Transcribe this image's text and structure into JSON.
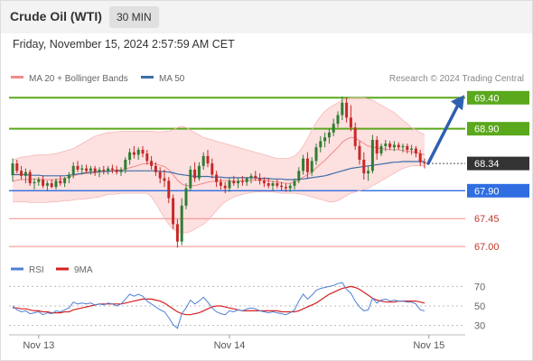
{
  "header": {
    "title": "Crude Oil (WTI)",
    "interval": "30 MIN",
    "datetime": "Friday, November 15, 2024 2:57:59 AM CET"
  },
  "legend": {
    "ma20": "MA 20 + Bollinger Bands",
    "ma50": "MA 50",
    "source": "Research © 2024 Trading Central",
    "rsi": "RSI",
    "rsi_ma": "9MA"
  },
  "colors": {
    "up": "#2e7d32",
    "down": "#c62828",
    "resistance": "#5aa81c",
    "pivot": "#2f6de1",
    "support": "#f08b8b",
    "ma20": "#f28a8a",
    "ma50": "#3e6ea8",
    "band": "#fde0e0",
    "rsi": "#4f7fd6",
    "rsi_ma": "#d62020",
    "last": "#333333",
    "arrow": "#2f5fb0"
  },
  "chart_data": [
    {
      "type": "candlestick",
      "ylim": [
        66.9,
        69.55
      ],
      "x_ticks": [
        {
          "label": "Nov 13",
          "index": 6
        },
        {
          "label": "Nov 14",
          "index": 50
        },
        {
          "label": "Nov 15",
          "index": 96
        }
      ],
      "levels": [
        {
          "value": 69.4,
          "label": "69.40",
          "kind": "resistance"
        },
        {
          "value": 68.9,
          "label": "68.90",
          "kind": "resistance"
        },
        {
          "value": 68.34,
          "label": "68.34",
          "kind": "last"
        },
        {
          "value": 67.9,
          "label": "67.90",
          "kind": "pivot"
        },
        {
          "value": 67.45,
          "label": "67.45",
          "kind": "support"
        },
        {
          "value": 67.0,
          "label": "67.00",
          "kind": "support"
        }
      ],
      "last_price": 68.34,
      "projection": {
        "from": 68.34,
        "to": 69.4
      },
      "series": [
        {
          "name": "MA 20",
          "indicator": "ma20"
        },
        {
          "name": "MA 50",
          "indicator": "ma50"
        },
        {
          "name": "Bollinger Bands",
          "indicator": "bollinger"
        }
      ],
      "ohlc": [
        [
          68.15,
          68.42,
          68.05,
          68.34
        ],
        [
          68.34,
          68.4,
          68.18,
          68.22
        ],
        [
          68.22,
          68.3,
          68.08,
          68.14
        ],
        [
          68.14,
          68.26,
          68.02,
          68.2
        ],
        [
          68.2,
          68.24,
          67.98,
          68.02
        ],
        [
          68.02,
          68.1,
          67.92,
          68.04
        ],
        [
          68.04,
          68.12,
          67.98,
          68.08
        ],
        [
          68.08,
          68.14,
          67.94,
          67.98
        ],
        [
          67.98,
          68.06,
          67.9,
          68.02
        ],
        [
          68.02,
          68.08,
          67.94,
          67.96
        ],
        [
          67.96,
          68.1,
          67.92,
          68.06
        ],
        [
          68.06,
          68.14,
          67.98,
          68.02
        ],
        [
          68.02,
          68.12,
          67.96,
          68.1
        ],
        [
          68.1,
          68.2,
          68.02,
          68.16
        ],
        [
          68.16,
          68.36,
          68.1,
          68.3
        ],
        [
          68.3,
          68.38,
          68.2,
          68.24
        ],
        [
          68.24,
          68.32,
          68.16,
          68.26
        ],
        [
          68.26,
          68.32,
          68.18,
          68.22
        ],
        [
          68.22,
          68.3,
          68.16,
          68.26
        ],
        [
          68.26,
          68.3,
          68.14,
          68.2
        ],
        [
          68.2,
          68.28,
          68.12,
          68.24
        ],
        [
          68.24,
          68.3,
          68.16,
          68.22
        ],
        [
          68.22,
          68.3,
          68.16,
          68.26
        ],
        [
          68.26,
          68.32,
          68.18,
          68.24
        ],
        [
          68.24,
          68.3,
          68.16,
          68.2
        ],
        [
          68.2,
          68.28,
          68.14,
          68.24
        ],
        [
          68.24,
          68.44,
          68.18,
          68.4
        ],
        [
          68.4,
          68.58,
          68.32,
          68.52
        ],
        [
          68.52,
          68.62,
          68.42,
          68.48
        ],
        [
          68.48,
          68.6,
          68.4,
          68.56
        ],
        [
          68.56,
          68.62,
          68.44,
          68.5
        ],
        [
          68.5,
          68.56,
          68.32,
          68.38
        ],
        [
          68.38,
          68.46,
          68.24,
          68.3
        ],
        [
          68.3,
          68.36,
          68.14,
          68.2
        ],
        [
          68.2,
          68.28,
          68.02,
          68.1
        ],
        [
          68.1,
          68.24,
          67.96,
          68.06
        ],
        [
          68.06,
          68.12,
          67.7,
          67.78
        ],
        [
          67.78,
          67.84,
          67.28,
          67.36
        ],
        [
          67.36,
          67.44,
          66.98,
          67.08
        ],
        [
          67.08,
          67.78,
          67.02,
          67.66
        ],
        [
          67.66,
          68.02,
          67.6,
          67.94
        ],
        [
          67.94,
          68.3,
          67.9,
          68.24
        ],
        [
          68.24,
          68.36,
          68.04,
          68.1
        ],
        [
          68.1,
          68.36,
          68.06,
          68.3
        ],
        [
          68.3,
          68.52,
          68.24,
          68.46
        ],
        [
          68.46,
          68.56,
          68.28,
          68.34
        ],
        [
          68.34,
          68.42,
          68.1,
          68.16
        ],
        [
          68.16,
          68.22,
          67.96,
          68.04
        ],
        [
          68.04,
          68.1,
          67.92,
          67.98
        ],
        [
          67.98,
          68.04,
          67.86,
          67.94
        ],
        [
          67.94,
          68.1,
          67.88,
          68.06
        ],
        [
          68.06,
          68.14,
          67.98,
          68.02
        ],
        [
          68.02,
          68.1,
          67.94,
          68.06
        ],
        [
          68.06,
          68.14,
          67.98,
          68.04
        ],
        [
          68.04,
          68.12,
          67.98,
          68.1
        ],
        [
          68.1,
          68.18,
          68.02,
          68.14
        ],
        [
          68.14,
          68.22,
          68.06,
          68.1
        ],
        [
          68.1,
          68.18,
          68.0,
          68.06
        ],
        [
          68.06,
          68.12,
          67.96,
          68.02
        ],
        [
          68.02,
          68.1,
          67.94,
          67.98
        ],
        [
          67.98,
          68.06,
          67.9,
          68.02
        ],
        [
          68.02,
          68.08,
          67.94,
          67.98
        ],
        [
          67.98,
          68.04,
          67.9,
          67.96
        ],
        [
          67.96,
          68.02,
          67.88,
          67.94
        ],
        [
          67.94,
          68.02,
          67.88,
          67.98
        ],
        [
          67.98,
          68.1,
          67.92,
          68.06
        ],
        [
          68.06,
          68.28,
          68.02,
          68.22
        ],
        [
          68.22,
          68.48,
          68.16,
          68.42
        ],
        [
          68.42,
          68.52,
          68.1,
          68.2
        ],
        [
          68.2,
          68.44,
          68.14,
          68.38
        ],
        [
          68.38,
          68.66,
          68.32,
          68.6
        ],
        [
          68.6,
          68.78,
          68.52,
          68.7
        ],
        [
          68.7,
          68.84,
          68.6,
          68.76
        ],
        [
          68.76,
          68.9,
          68.66,
          68.84
        ],
        [
          68.84,
          69.06,
          68.78,
          68.98
        ],
        [
          68.98,
          69.18,
          68.92,
          69.12
        ],
        [
          69.12,
          69.42,
          69.04,
          69.32
        ],
        [
          69.32,
          69.4,
          69.0,
          69.08
        ],
        [
          69.08,
          69.28,
          68.86,
          68.92
        ],
        [
          68.92,
          69.0,
          68.56,
          68.62
        ],
        [
          68.62,
          68.7,
          68.32,
          68.4
        ],
        [
          68.4,
          68.52,
          68.08,
          68.18
        ],
        [
          68.18,
          68.3,
          68.06,
          68.22
        ],
        [
          68.22,
          68.8,
          68.18,
          68.72
        ],
        [
          68.72,
          68.78,
          68.4,
          68.5
        ],
        [
          68.5,
          68.66,
          68.46,
          68.62
        ],
        [
          68.62,
          68.72,
          68.54,
          68.66
        ],
        [
          68.66,
          68.7,
          68.56,
          68.6
        ],
        [
          68.6,
          68.7,
          68.54,
          68.64
        ],
        [
          68.64,
          68.68,
          68.56,
          68.6
        ],
        [
          68.6,
          68.66,
          68.52,
          68.62
        ],
        [
          68.62,
          68.66,
          68.5,
          68.56
        ],
        [
          68.56,
          68.64,
          68.48,
          68.58
        ],
        [
          68.58,
          68.62,
          68.44,
          68.5
        ],
        [
          68.5,
          68.56,
          68.3,
          68.36
        ],
        [
          68.36,
          68.42,
          68.26,
          68.34
        ]
      ],
      "ma20": [
        68.05,
        68.07,
        68.08,
        68.08,
        68.08,
        68.09,
        68.09,
        68.08,
        68.08,
        68.08,
        68.08,
        68.09,
        68.1,
        68.12,
        68.14,
        68.16,
        68.17,
        68.18,
        68.18,
        68.19,
        68.2,
        68.21,
        68.22,
        68.23,
        68.23,
        68.24,
        68.25,
        68.27,
        68.29,
        68.31,
        68.33,
        68.34,
        68.34,
        68.33,
        68.31,
        68.29,
        68.24,
        68.16,
        68.07,
        68.01,
        67.98,
        67.98,
        67.98,
        68.0,
        68.02,
        68.04,
        68.05,
        68.05,
        68.06,
        68.06,
        68.06,
        68.05,
        68.05,
        68.06,
        68.06,
        68.07,
        68.07,
        68.07,
        68.07,
        68.06,
        68.05,
        68.04,
        68.03,
        68.02,
        68.02,
        68.04,
        68.07,
        68.12,
        68.16,
        68.2,
        68.27,
        68.33,
        68.39,
        68.46,
        68.53,
        68.6,
        68.68,
        68.73,
        68.76,
        68.75,
        68.71,
        68.66,
        68.62,
        68.61,
        68.59,
        68.58,
        68.57,
        68.56,
        68.56,
        68.56,
        68.55,
        68.54,
        68.53,
        68.52,
        68.5,
        68.48
      ],
      "bb_upper": [
        68.4,
        68.42,
        68.44,
        68.45,
        68.46,
        68.47,
        68.48,
        68.48,
        68.48,
        68.49,
        68.5,
        68.52,
        68.54,
        68.56,
        68.58,
        68.62,
        68.66,
        68.7,
        68.74,
        68.78,
        68.8,
        68.82,
        68.84,
        68.84,
        68.85,
        68.86,
        68.86,
        68.86,
        68.86,
        68.86,
        68.86,
        68.86,
        68.86,
        68.85,
        68.85,
        68.86,
        68.86,
        68.88,
        68.92,
        68.94,
        68.92,
        68.88,
        68.84,
        68.8,
        68.76,
        68.74,
        68.72,
        68.7,
        68.68,
        68.66,
        68.64,
        68.62,
        68.6,
        68.58,
        68.56,
        68.54,
        68.52,
        68.5,
        68.48,
        68.46,
        68.44,
        68.42,
        68.42,
        68.42,
        68.43,
        68.46,
        68.52,
        68.62,
        68.74,
        68.88,
        69.0,
        69.1,
        69.18,
        69.24,
        69.28,
        69.32,
        69.36,
        69.38,
        69.4,
        69.4,
        69.4,
        69.4,
        69.38,
        69.36,
        69.32,
        69.28,
        69.24,
        69.2,
        69.16,
        69.1,
        69.04,
        68.98,
        68.92,
        68.88,
        68.84,
        68.8
      ],
      "bb_lower": [
        67.72,
        67.72,
        67.72,
        67.72,
        67.71,
        67.71,
        67.71,
        67.71,
        67.71,
        67.72,
        67.72,
        67.73,
        67.74,
        67.74,
        67.75,
        67.76,
        67.76,
        67.77,
        67.78,
        67.79,
        67.8,
        67.82,
        67.84,
        67.84,
        67.85,
        67.86,
        67.86,
        67.86,
        67.86,
        67.86,
        67.86,
        67.86,
        67.8,
        67.7,
        67.58,
        67.46,
        67.36,
        67.28,
        67.24,
        67.22,
        67.22,
        67.24,
        67.28,
        67.32,
        67.36,
        67.42,
        67.5,
        67.58,
        67.66,
        67.72,
        67.76,
        67.8,
        67.82,
        67.84,
        67.86,
        67.87,
        67.88,
        67.88,
        67.88,
        67.88,
        67.88,
        67.87,
        67.86,
        67.86,
        67.86,
        67.86,
        67.85,
        67.84,
        67.82,
        67.8,
        67.78,
        67.76,
        67.74,
        67.72,
        67.72,
        67.74,
        67.78,
        67.82,
        67.86,
        67.88,
        67.9,
        67.92,
        67.94,
        67.98,
        68.02,
        68.06,
        68.1,
        68.14,
        68.18,
        68.22,
        68.26,
        68.28,
        68.3,
        68.3,
        68.3,
        68.3
      ],
      "ma50": [
        68.16,
        68.16,
        68.16,
        68.16,
        68.15,
        68.15,
        68.15,
        68.14,
        68.14,
        68.14,
        68.14,
        68.14,
        68.14,
        68.15,
        68.16,
        68.17,
        68.18,
        68.19,
        68.2,
        68.2,
        68.21,
        68.21,
        68.21,
        68.22,
        68.22,
        68.22,
        68.22,
        68.22,
        68.22,
        68.22,
        68.22,
        68.22,
        68.22,
        68.22,
        68.21,
        68.21,
        68.2,
        68.19,
        68.17,
        68.16,
        68.15,
        68.14,
        68.13,
        68.13,
        68.13,
        68.13,
        68.12,
        68.12,
        68.12,
        68.11,
        68.11,
        68.11,
        68.11,
        68.11,
        68.11,
        68.11,
        68.11,
        68.1,
        68.1,
        68.1,
        68.09,
        68.09,
        68.09,
        68.08,
        68.08,
        68.08,
        68.09,
        68.09,
        68.1,
        68.11,
        68.12,
        68.13,
        68.14,
        68.16,
        68.18,
        68.2,
        68.22,
        68.24,
        68.26,
        68.27,
        68.28,
        68.29,
        68.3,
        68.31,
        68.32,
        68.33,
        68.34,
        68.35,
        68.36,
        68.36,
        68.37,
        68.37,
        68.37,
        68.37,
        68.37,
        68.37
      ]
    },
    {
      "type": "line",
      "ylim": [
        25,
        75
      ],
      "y_ticks": [
        70,
        50,
        30
      ],
      "series": [
        {
          "name": "RSI",
          "values": [
            50,
            46,
            44,
            45,
            42,
            43,
            44,
            41,
            43,
            42,
            45,
            44,
            46,
            48,
            54,
            52,
            53,
            52,
            53,
            51,
            52,
            51,
            53,
            52,
            50,
            52,
            57,
            62,
            60,
            62,
            60,
            55,
            52,
            49,
            46,
            44,
            38,
            31,
            27,
            42,
            48,
            56,
            52,
            55,
            59,
            54,
            48,
            44,
            42,
            41,
            45,
            44,
            46,
            45,
            47,
            48,
            47,
            45,
            44,
            43,
            44,
            43,
            42,
            41,
            43,
            46,
            55,
            62,
            57,
            61,
            66,
            68,
            69,
            70,
            71,
            73,
            74,
            67,
            63,
            55,
            49,
            45,
            46,
            58,
            53,
            56,
            57,
            55,
            56,
            55,
            55,
            54,
            54,
            52,
            46,
            45
          ]
        },
        {
          "name": "9MA",
          "values": [
            48,
            48,
            47,
            47,
            46,
            45,
            45,
            44,
            44,
            43,
            43,
            43,
            44,
            44,
            46,
            47,
            48,
            49,
            50,
            51,
            52,
            52,
            52,
            52,
            52,
            52,
            53,
            54,
            55,
            56,
            57,
            57,
            57,
            56,
            55,
            53,
            50,
            47,
            44,
            42,
            41,
            41,
            42,
            43,
            45,
            47,
            49,
            50,
            50,
            49,
            48,
            47,
            46,
            45,
            45,
            45,
            45,
            45,
            45,
            45,
            45,
            45,
            44,
            44,
            44,
            44,
            45,
            47,
            49,
            51,
            53,
            56,
            59,
            62,
            64,
            66,
            68,
            69,
            70,
            69,
            67,
            64,
            61,
            58,
            56,
            55,
            54,
            54,
            54,
            55,
            55,
            55,
            55,
            55,
            54,
            53
          ]
        }
      ]
    }
  ]
}
